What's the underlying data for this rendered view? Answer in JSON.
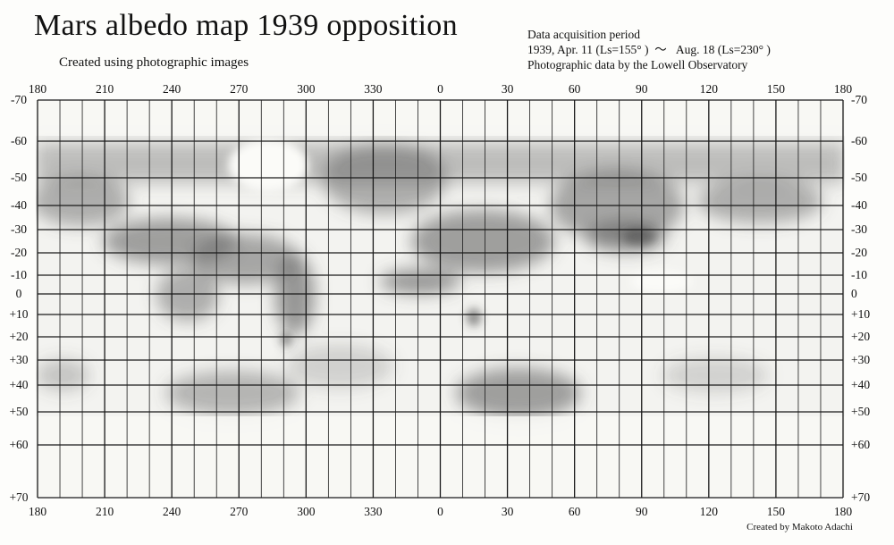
{
  "title": "Mars albedo map 1939 opposition",
  "subtitle": "Created using photographic images",
  "info": {
    "line1": "Data acquisition period",
    "line2": "1939, Apr. 11 (Ls=155° )  ～   Aug. 18 (Ls=230° )",
    "line3": "Photographic data by the Lowell Observatory"
  },
  "credit": "Created by Makoto Adachi",
  "longitude_labels": [
    "180",
    "210",
    "240",
    "270",
    "300",
    "330",
    "0",
    "30",
    "60",
    "90",
    "120",
    "150",
    "180"
  ],
  "latitude_labels": [
    "-70",
    "-60",
    "-50",
    "-40",
    "-30",
    "-20",
    "-10",
    "0",
    "+10",
    "+20",
    "+30",
    "+40",
    "+50",
    "+60",
    "+70"
  ],
  "latitudes": [
    -70,
    -60,
    -50,
    -40,
    -30,
    -20,
    -10,
    0,
    10,
    20,
    30,
    40,
    50,
    60,
    70
  ],
  "colors": {
    "background": "#fdfdfb",
    "grid": "#1a1a1a",
    "shading": "#5a5a5a"
  }
}
